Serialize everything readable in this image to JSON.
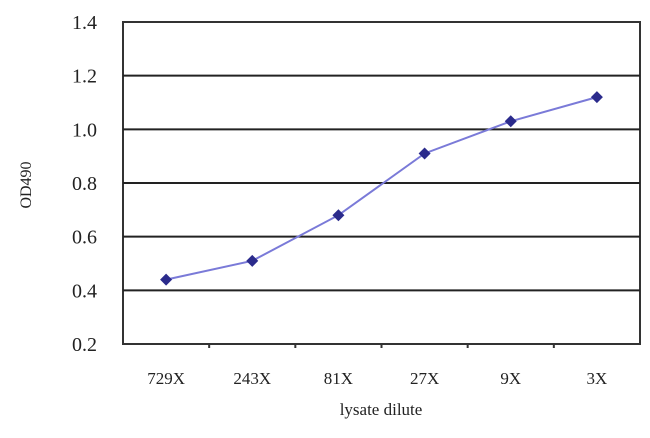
{
  "chart_data": {
    "type": "line",
    "title": "",
    "xlabel": "lysate dilute",
    "ylabel": "OD490",
    "categories": [
      "729X",
      "243X",
      "81X",
      "27X",
      "9X",
      "3X"
    ],
    "series": [
      {
        "values": [
          0.44,
          0.51,
          0.68,
          0.91,
          1.03,
          1.12
        ],
        "color": "#2b2b8c"
      }
    ],
    "ylim": [
      0.2,
      1.4
    ],
    "yticks": [
      "0.2",
      "0.4",
      "0.6",
      "0.8",
      "1.0",
      "1.2",
      "1.4"
    ],
    "grid": true,
    "marker": "diamond",
    "line_color": "#7a7ad8"
  }
}
